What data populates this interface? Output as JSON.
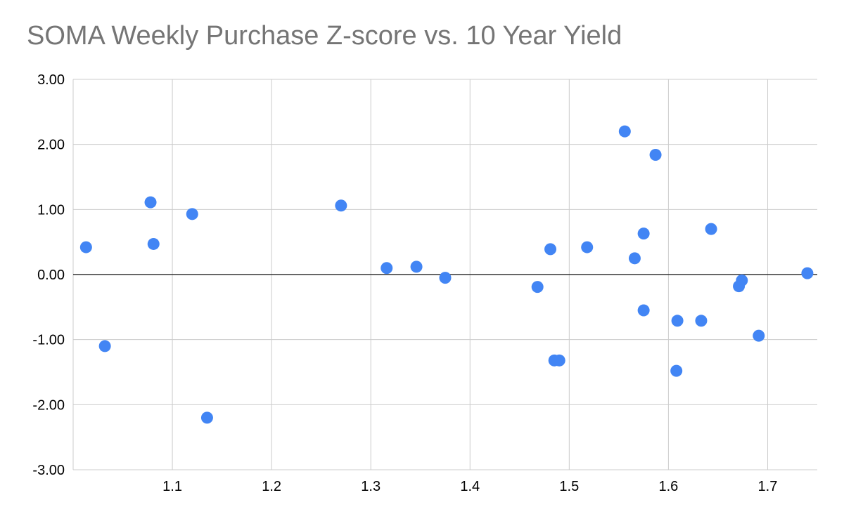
{
  "chart_data": {
    "type": "scatter",
    "title": "SOMA Weekly Purchase Z-score vs. 10 Year Yield",
    "xlabel": "",
    "ylabel": "",
    "xlim": [
      1.0,
      1.75
    ],
    "ylim": [
      -3,
      3
    ],
    "x_ticks": [
      1.1,
      1.2,
      1.3,
      1.4,
      1.5,
      1.6,
      1.7
    ],
    "x_tick_labels": [
      "1.1",
      "1.2",
      "1.3",
      "1.4",
      "1.5",
      "1.6",
      "1.7"
    ],
    "y_ticks": [
      3,
      2,
      1,
      0,
      -1,
      -2,
      -3
    ],
    "y_tick_labels": [
      "3.00",
      "2.00",
      "1.00",
      "0.00",
      "-1.00",
      "-2.00",
      "-3.00"
    ],
    "grid": true,
    "legend": "none",
    "point_color": "#4285f4",
    "series": [
      {
        "points": [
          {
            "x": 1.013,
            "y": 0.42
          },
          {
            "x": 1.032,
            "y": -1.1
          },
          {
            "x": 1.078,
            "y": 1.11
          },
          {
            "x": 1.081,
            "y": 0.47
          },
          {
            "x": 1.12,
            "y": 0.93
          },
          {
            "x": 1.135,
            "y": -2.2
          },
          {
            "x": 1.27,
            "y": 1.06
          },
          {
            "x": 1.316,
            "y": 0.1
          },
          {
            "x": 1.346,
            "y": 0.12
          },
          {
            "x": 1.375,
            "y": -0.05
          },
          {
            "x": 1.468,
            "y": -0.19
          },
          {
            "x": 1.481,
            "y": 0.39
          },
          {
            "x": 1.485,
            "y": -1.32
          },
          {
            "x": 1.49,
            "y": -1.32
          },
          {
            "x": 1.518,
            "y": 0.42
          },
          {
            "x": 1.556,
            "y": 2.2
          },
          {
            "x": 1.566,
            "y": 0.25
          },
          {
            "x": 1.575,
            "y": 0.63
          },
          {
            "x": 1.575,
            "y": -0.55
          },
          {
            "x": 1.587,
            "y": 1.84
          },
          {
            "x": 1.608,
            "y": -1.48
          },
          {
            "x": 1.609,
            "y": -0.71
          },
          {
            "x": 1.633,
            "y": -0.71
          },
          {
            "x": 1.643,
            "y": 0.7
          },
          {
            "x": 1.671,
            "y": -0.18
          },
          {
            "x": 1.674,
            "y": -0.09
          },
          {
            "x": 1.691,
            "y": -0.94
          },
          {
            "x": 1.74,
            "y": 0.02
          }
        ]
      }
    ]
  }
}
